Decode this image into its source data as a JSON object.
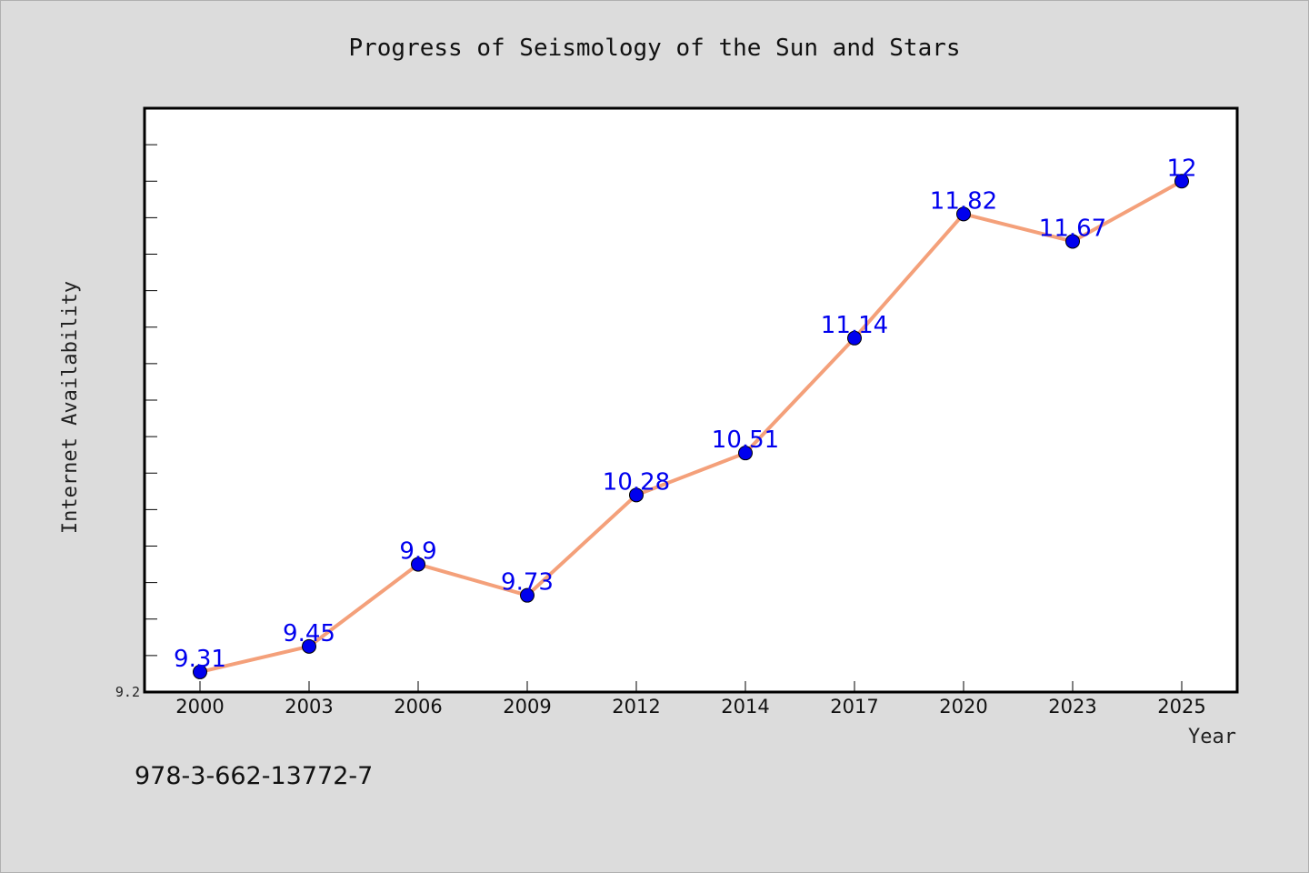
{
  "chart_data": {
    "type": "line",
    "title": "Progress of Seismology of the Sun and Stars",
    "xlabel": "Year",
    "ylabel": "Internet Availability",
    "categories": [
      "2000",
      "2003",
      "2006",
      "2009",
      "2012",
      "2014",
      "2017",
      "2020",
      "2023",
      "2025"
    ],
    "series": [
      {
        "values": [
          9.31,
          9.45,
          9.9,
          9.73,
          10.28,
          10.51,
          11.14,
          11.82,
          11.67,
          12
        ]
      }
    ],
    "data_labels": [
      "9.31",
      "9.45",
      "9.9",
      "9.73",
      "10.28",
      "10.51",
      "11.14",
      "11.82",
      "11.67",
      "12"
    ],
    "ylim": [
      9.2,
      12.4
    ],
    "yticks_labeled": [
      "9.2"
    ],
    "grid": false,
    "legend": "none",
    "line_color": "#f4a07a",
    "marker_color": "#0000ee",
    "label_color": "#0000ee"
  },
  "footnote": "978-3-662-13772-7"
}
